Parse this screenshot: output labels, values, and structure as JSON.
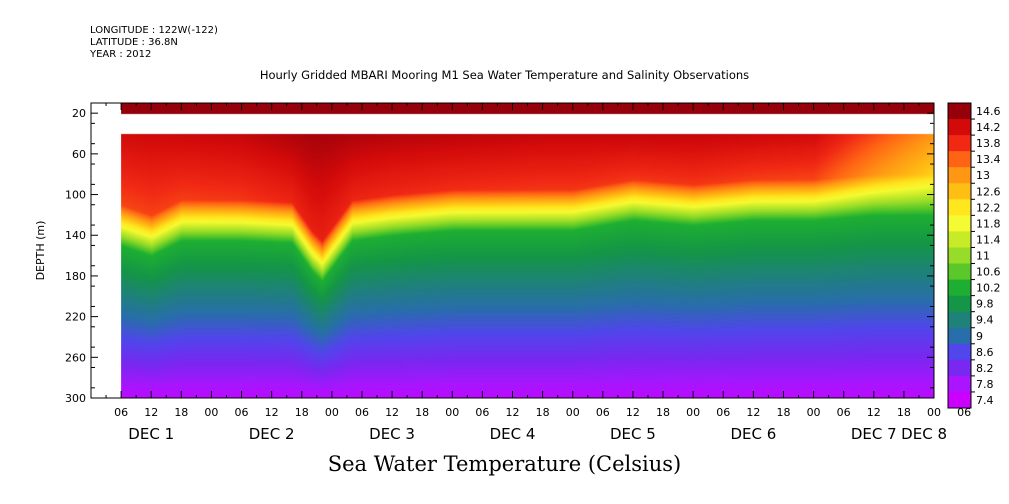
{
  "header": {
    "longitude": "LONGITUDE : 122W(-122)",
    "latitude": "LATITUDE : 36.8N",
    "year": "YEAR : 2012"
  },
  "chart_data": {
    "type": "heatmap",
    "title": "Hourly Gridded MBARI Mooring M1 Sea Water Temperature and Salinity Observations",
    "xlabel": "Sea Water Temperature (Celsius)",
    "ylabel": "DEPTH (m)",
    "y_ticks": [
      "20",
      "60",
      "100",
      "140",
      "180",
      "220",
      "260",
      "300"
    ],
    "y_tick_values": [
      20,
      60,
      100,
      140,
      180,
      220,
      260,
      300
    ],
    "ylim": [
      300,
      10
    ],
    "x_range_hours": [
      0,
      168
    ],
    "x_hour_labels": [
      "06",
      "12",
      "18",
      "00",
      "06",
      "12",
      "18",
      "00",
      "06",
      "12",
      "18",
      "00",
      "06",
      "12",
      "18",
      "00",
      "06",
      "12",
      "18",
      "00",
      "06",
      "12",
      "18",
      "00",
      "06",
      "12",
      "18",
      "00",
      "06"
    ],
    "x_date_labels": [
      "DEC 1",
      "DEC 2",
      "DEC 3",
      "DEC 4",
      "DEC 5",
      "DEC 6",
      "DEC 7",
      "DEC 8"
    ],
    "colorbar_labels": [
      "14.6",
      "14.2",
      "13.8",
      "13.4",
      "13",
      "12.6",
      "12.2",
      "11.8",
      "11.4",
      "11",
      "10.6",
      "10.2",
      "9.8",
      "9.4",
      "9",
      "8.6",
      "8.2",
      "7.8",
      "7.4"
    ],
    "colorbar_values": [
      14.6,
      14.2,
      13.8,
      13.4,
      13.0,
      12.6,
      12.2,
      11.8,
      11.4,
      11.0,
      10.6,
      10.2,
      9.8,
      9.4,
      9.0,
      8.6,
      8.2,
      7.8,
      7.4
    ],
    "data_start_hour": 6,
    "near_surface_band_depth": [
      10,
      20
    ],
    "near_surface_temperature": 14.6,
    "data_gap_depth": [
      20,
      40
    ],
    "thermocline_depth": [
      {
        "hour": 6,
        "depth": 125
      },
      {
        "hour": 12,
        "depth": 135
      },
      {
        "hour": 18,
        "depth": 120
      },
      {
        "hour": 30,
        "depth": 120
      },
      {
        "hour": 40,
        "depth": 122
      },
      {
        "hour": 44,
        "depth": 150
      },
      {
        "hour": 46,
        "depth": 160
      },
      {
        "hour": 52,
        "depth": 120
      },
      {
        "hour": 60,
        "depth": 115
      },
      {
        "hour": 72,
        "depth": 110
      },
      {
        "hour": 84,
        "depth": 110
      },
      {
        "hour": 96,
        "depth": 110
      },
      {
        "hour": 108,
        "depth": 100
      },
      {
        "hour": 120,
        "depth": 105
      },
      {
        "hour": 132,
        "depth": 100
      },
      {
        "hour": 144,
        "depth": 100
      },
      {
        "hour": 156,
        "depth": 95
      },
      {
        "hour": 168,
        "depth": 95
      }
    ],
    "surface_temperature": [
      {
        "hour": 6,
        "temp": 14.2
      },
      {
        "hour": 30,
        "temp": 14.3
      },
      {
        "hour": 44,
        "temp": 14.5
      },
      {
        "hour": 60,
        "temp": 14.4
      },
      {
        "hour": 90,
        "temp": 14.3
      },
      {
        "hour": 120,
        "temp": 14.3
      },
      {
        "hour": 144,
        "temp": 14.2
      },
      {
        "hour": 156,
        "temp": 13.6
      },
      {
        "hour": 168,
        "temp": 13.0
      }
    ],
    "deep_temperature_300m": 7.6
  }
}
